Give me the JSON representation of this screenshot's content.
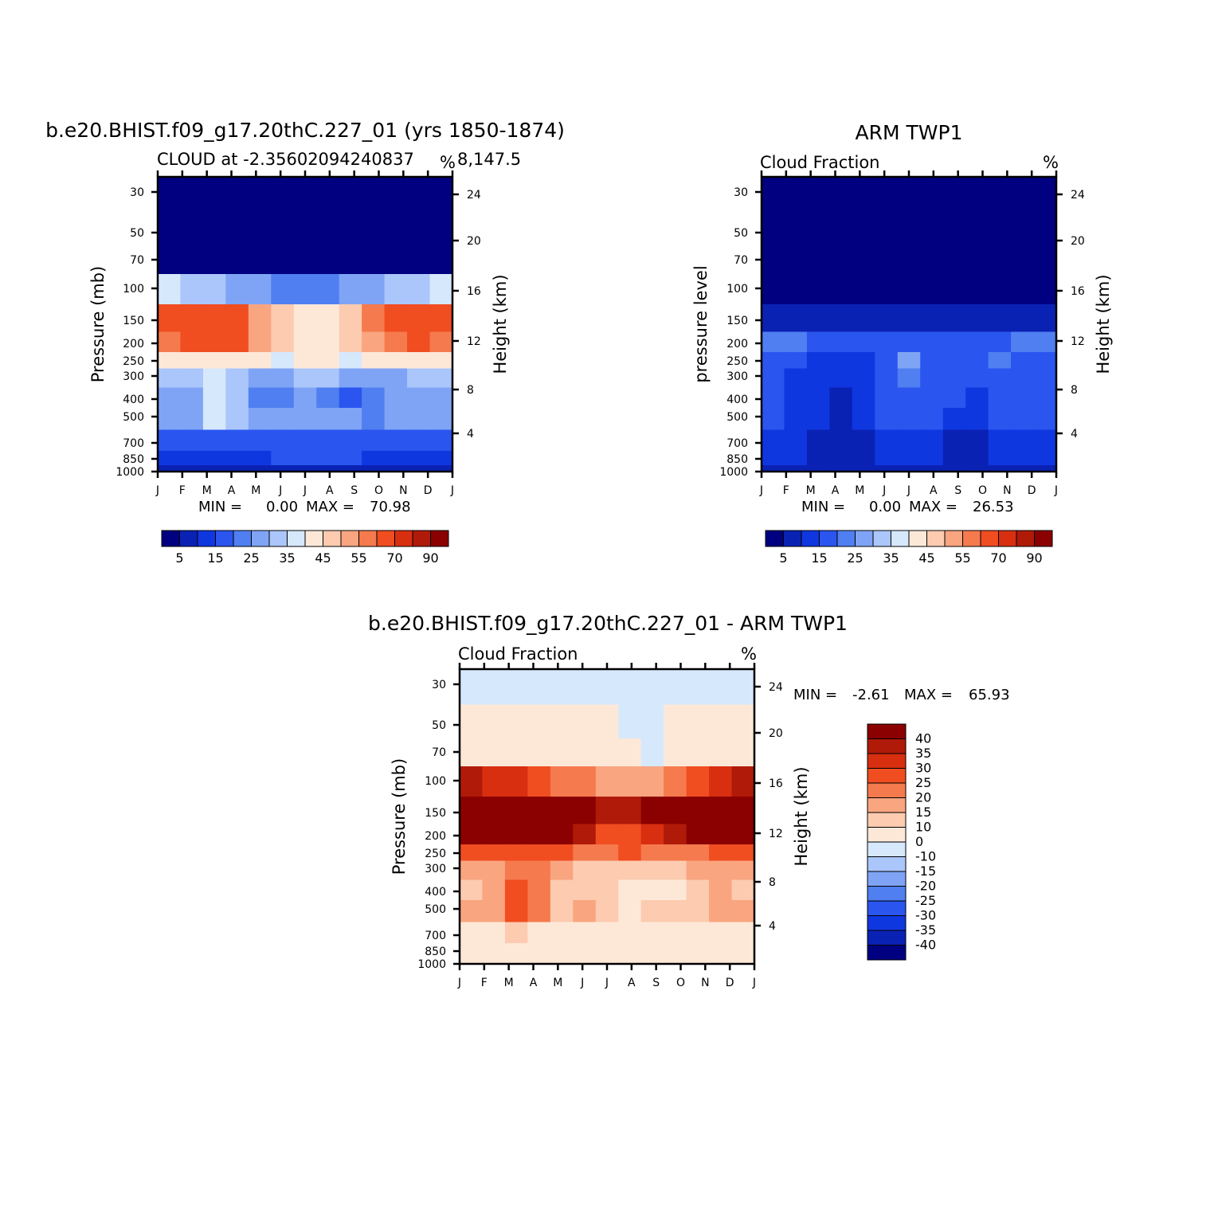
{
  "chart_data": [
    {
      "type": "heatmap",
      "title": "b.e20.BHIST.f09_g17.20thC.227_01 (yrs 1850-1874)",
      "subtitle_left": "CLOUD at -2.35602094240837",
      "subtitle_right": "8,147.5",
      "units": "%",
      "ylabel": "Pressure (mb)",
      "ylabel_right": "Height (km)",
      "y_ticks": [
        "30",
        "50",
        "70",
        "100",
        "150",
        "200",
        "250",
        "300",
        "400",
        "500",
        "700",
        "850",
        "1000"
      ],
      "y_ticks_right": [
        "24",
        "20",
        "16",
        "12",
        "8",
        "4"
      ],
      "x_ticks": [
        "J",
        "F",
        "M",
        "A",
        "M",
        "J",
        "J",
        "A",
        "S",
        "O",
        "N",
        "D",
        "J"
      ],
      "stats": {
        "min_label": "MIN =",
        "min": "0.00",
        "max_label": "MAX =",
        "max": "70.98"
      },
      "colorbar_labels": [
        "5",
        "15",
        "25",
        "35",
        "45",
        "55",
        "70",
        "90"
      ],
      "levels": [
        0,
        5,
        10,
        15,
        20,
        25,
        30,
        35,
        40,
        45,
        50,
        55,
        60,
        70,
        80,
        90
      ],
      "values": [
        [
          0,
          0,
          0,
          0,
          0,
          0,
          0,
          0,
          0,
          0,
          0,
          0,
          0
        ],
        [
          0,
          0,
          0,
          0,
          0,
          0,
          0,
          0,
          0,
          0,
          0,
          0,
          0
        ],
        [
          0,
          0,
          0,
          0,
          0,
          0,
          0,
          0,
          0,
          0,
          0,
          0,
          0
        ],
        [
          35,
          33,
          30,
          25,
          25,
          20,
          20,
          22,
          25,
          25,
          30,
          33,
          35
        ],
        [
          60,
          62,
          68,
          60,
          50,
          45,
          42,
          42,
          45,
          55,
          62,
          62,
          60
        ],
        [
          58,
          60,
          62,
          60,
          52,
          45,
          42,
          42,
          45,
          52,
          58,
          60,
          58
        ],
        [
          42,
          42,
          40,
          40,
          40,
          38,
          40,
          40,
          38,
          40,
          40,
          42,
          42
        ],
        [
          30,
          30,
          35,
          32,
          28,
          28,
          30,
          30,
          28,
          28,
          28,
          30,
          30
        ],
        [
          25,
          28,
          35,
          30,
          20,
          22,
          25,
          20,
          18,
          22,
          25,
          25,
          25
        ],
        [
          25,
          28,
          38,
          30,
          25,
          28,
          28,
          25,
          25,
          22,
          25,
          28,
          25
        ],
        [
          15,
          15,
          15,
          18,
          15,
          15,
          15,
          15,
          15,
          15,
          15,
          15,
          15
        ],
        [
          10,
          10,
          10,
          12,
          12,
          15,
          15,
          18,
          15,
          12,
          10,
          10,
          10
        ],
        [
          5,
          5,
          5,
          5,
          5,
          5,
          5,
          5,
          5,
          5,
          5,
          5,
          5
        ]
      ]
    },
    {
      "type": "heatmap",
      "title": "ARM TWP1",
      "subtitle_left": "Cloud Fraction",
      "units": "%",
      "ylabel": "pressure level",
      "ylabel_right": "Height (km)",
      "y_ticks": [
        "30",
        "50",
        "70",
        "100",
        "150",
        "200",
        "250",
        "300",
        "400",
        "500",
        "700",
        "850",
        "1000"
      ],
      "y_ticks_right": [
        "24",
        "20",
        "16",
        "12",
        "8",
        "4"
      ],
      "x_ticks": [
        "J",
        "F",
        "M",
        "A",
        "M",
        "J",
        "J",
        "A",
        "S",
        "O",
        "N",
        "D",
        "J"
      ],
      "stats": {
        "min_label": "MIN =",
        "min": "0.00",
        "max_label": "MAX =",
        "max": "26.53"
      },
      "colorbar_labels": [
        "5",
        "15",
        "25",
        "35",
        "45",
        "55",
        "70",
        "90"
      ],
      "levels": [
        0,
        5,
        10,
        15,
        20,
        25,
        30,
        35,
        40,
        45,
        50,
        55,
        60,
        70,
        80,
        90
      ],
      "values": [
        [
          0,
          0,
          0,
          0,
          0,
          0,
          0,
          0,
          0,
          0,
          0,
          0,
          0
        ],
        [
          0,
          0,
          0,
          0,
          0,
          0,
          0,
          0,
          0,
          0,
          0,
          0,
          0
        ],
        [
          0,
          0,
          0,
          0,
          0,
          0,
          0,
          0,
          0,
          0,
          0,
          0,
          0
        ],
        [
          0,
          0,
          0,
          0,
          0,
          0,
          0,
          0,
          0,
          0,
          0,
          0,
          0
        ],
        [
          8,
          8,
          5,
          5,
          5,
          5,
          5,
          5,
          5,
          5,
          5,
          8,
          8
        ],
        [
          20,
          20,
          15,
          15,
          15,
          15,
          18,
          15,
          15,
          15,
          18,
          20,
          20
        ],
        [
          18,
          15,
          12,
          12,
          12,
          15,
          25,
          15,
          15,
          15,
          20,
          18,
          18
        ],
        [
          15,
          12,
          12,
          10,
          12,
          15,
          20,
          15,
          15,
          15,
          15,
          15,
          15
        ],
        [
          15,
          12,
          10,
          8,
          12,
          15,
          18,
          15,
          15,
          12,
          15,
          15,
          15
        ],
        [
          15,
          12,
          10,
          8,
          12,
          15,
          18,
          15,
          12,
          12,
          15,
          15,
          15
        ],
        [
          12,
          10,
          8,
          8,
          8,
          10,
          12,
          10,
          8,
          8,
          10,
          12,
          12
        ],
        [
          12,
          10,
          8,
          8,
          8,
          10,
          12,
          10,
          8,
          8,
          10,
          12,
          12
        ],
        [
          5,
          5,
          5,
          5,
          5,
          5,
          5,
          5,
          5,
          5,
          5,
          5,
          5
        ]
      ]
    },
    {
      "type": "heatmap",
      "title": "b.e20.BHIST.f09_g17.20thC.227_01 - ARM TWP1",
      "subtitle_left": "Cloud Fraction",
      "units": "%",
      "ylabel": "Pressure (mb)",
      "ylabel_right": "Height (km)",
      "y_ticks": [
        "30",
        "50",
        "70",
        "100",
        "150",
        "200",
        "250",
        "300",
        "400",
        "500",
        "700",
        "850",
        "1000"
      ],
      "y_ticks_right": [
        "24",
        "20",
        "16",
        "12",
        "8",
        "4"
      ],
      "x_ticks": [
        "J",
        "F",
        "M",
        "A",
        "M",
        "J",
        "J",
        "A",
        "S",
        "O",
        "N",
        "D",
        "J"
      ],
      "stats": {
        "min_label": "MIN =",
        "min": "-2.61",
        "max_label": "MAX =",
        "max": "65.93"
      },
      "colorbar_labels": [
        "40",
        "35",
        "30",
        "25",
        "20",
        "15",
        "10",
        "0",
        "-10",
        "-15",
        "-20",
        "-25",
        "-30",
        "-35",
        "-40"
      ],
      "levels": [
        -45,
        -40,
        -35,
        -30,
        -25,
        -20,
        -15,
        -10,
        0,
        10,
        15,
        20,
        25,
        30,
        35,
        40
      ],
      "values": [
        [
          -2,
          -2,
          -2,
          -2,
          -2,
          -2,
          -2,
          -2,
          -2,
          -2,
          -2,
          -2,
          -2
        ],
        [
          5,
          5,
          5,
          5,
          5,
          5,
          5,
          -2,
          -2,
          5,
          5,
          5,
          5
        ],
        [
          5,
          5,
          5,
          5,
          5,
          5,
          5,
          5,
          -1,
          5,
          5,
          5,
          5
        ],
        [
          35,
          33,
          30,
          25,
          22,
          20,
          15,
          15,
          18,
          20,
          25,
          30,
          35
        ],
        [
          55,
          60,
          65,
          55,
          45,
          42,
          38,
          38,
          42,
          48,
          55,
          60,
          55
        ],
        [
          45,
          45,
          48,
          45,
          40,
          35,
          28,
          28,
          32,
          38,
          42,
          45,
          45
        ],
        [
          25,
          25,
          28,
          28,
          25,
          22,
          22,
          25,
          22,
          22,
          22,
          25,
          25
        ],
        [
          15,
          15,
          20,
          20,
          15,
          12,
          10,
          10,
          10,
          12,
          15,
          15,
          15
        ],
        [
          12,
          15,
          25,
          20,
          10,
          12,
          10,
          8,
          8,
          8,
          12,
          15,
          12
        ],
        [
          15,
          15,
          25,
          22,
          12,
          15,
          12,
          8,
          12,
          10,
          12,
          15,
          15
        ],
        [
          8,
          8,
          10,
          8,
          5,
          5,
          5,
          5,
          5,
          5,
          5,
          5,
          8
        ],
        [
          5,
          5,
          5,
          5,
          5,
          5,
          5,
          5,
          5,
          5,
          5,
          5,
          5
        ],
        [
          5,
          5,
          5,
          5,
          5,
          5,
          5,
          5,
          5,
          5,
          5,
          5,
          5
        ]
      ]
    }
  ]
}
